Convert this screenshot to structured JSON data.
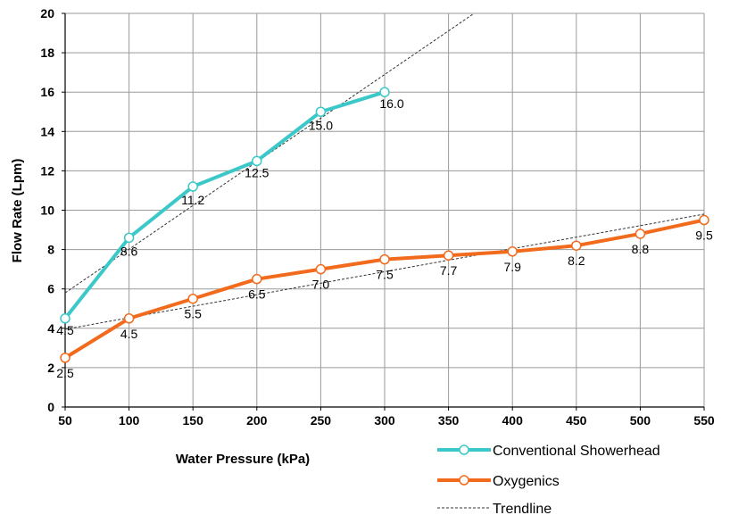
{
  "chart_data": {
    "type": "line",
    "xlabel": "Water Pressure (kPa)",
    "ylabel": "Flow Rate (Lpm)",
    "xlim": [
      50,
      550
    ],
    "ylim": [
      0,
      20
    ],
    "x_ticks": [
      "50",
      "100",
      "150",
      "200",
      "250",
      "300",
      "350",
      "400",
      "450",
      "500",
      "550"
    ],
    "y_ticks": [
      "0",
      "2",
      "4",
      "6",
      "8",
      "10",
      "12",
      "14",
      "16",
      "18",
      "20"
    ],
    "grid": true,
    "legend_position": "bottom-right",
    "series": [
      {
        "name": "Conventional Showerhead",
        "color": "#3cc8c8",
        "x": [
          50,
          100,
          150,
          200,
          250,
          300
        ],
        "values": [
          4.5,
          8.6,
          11.2,
          12.5,
          15.0,
          16.0
        ],
        "labels": [
          "4.5",
          "8.6",
          "11.2",
          "12.5",
          "15.0",
          "16.0"
        ]
      },
      {
        "name": "Oxygenics",
        "color": "#f26b1d",
        "x": [
          50,
          100,
          150,
          200,
          250,
          300,
          350,
          400,
          450,
          500,
          550
        ],
        "values": [
          2.5,
          4.5,
          5.5,
          6.5,
          7.0,
          7.5,
          7.7,
          7.9,
          8.2,
          8.8,
          9.5
        ],
        "labels": [
          "2.5",
          "4.5",
          "5.5",
          "6.5",
          "7.0",
          "7.5",
          "7.7",
          "7.9",
          "8.2",
          "8.8",
          "9.5"
        ]
      }
    ],
    "trendlines": [
      {
        "series": "Conventional Showerhead",
        "x": [
          50,
          370
        ],
        "values": [
          5.8,
          20
        ]
      },
      {
        "series": "Oxygenics",
        "x": [
          50,
          550
        ],
        "values": [
          3.95,
          9.8
        ]
      }
    ],
    "trendline_label": "Trendline"
  }
}
